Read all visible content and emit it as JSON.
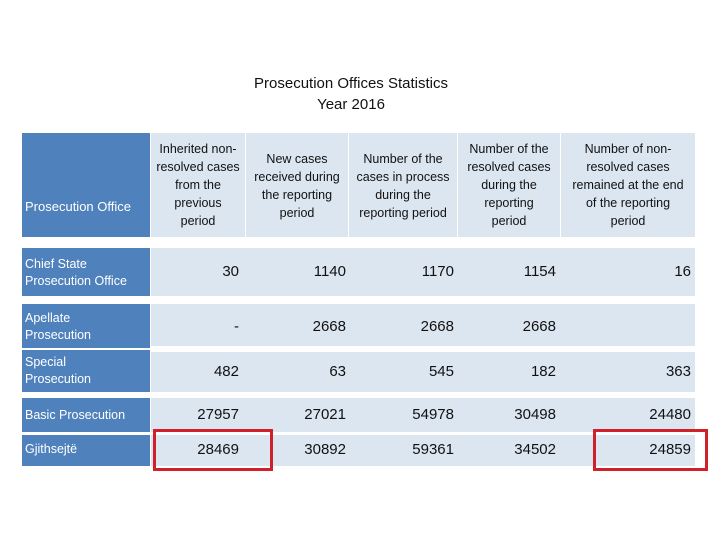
{
  "title": "Prosecution Offices Statistics",
  "subtitle": "Year 2016",
  "columns": [
    "Prosecution Office",
    "Inherited non-resolved cases from the previous period",
    "New cases received during the reporting period",
    "Number of the cases in process during the reporting period",
    "Number of the resolved cases during the reporting period",
    "Number of non-resolved cases remained at the end of the reporting period"
  ],
  "header_lines": {
    "c1": [
      "Inherited non-",
      "resolved cases",
      "from the",
      "previous",
      "period"
    ],
    "c2": [
      "New cases",
      "received during",
      "the reporting",
      "period"
    ],
    "c3": [
      "Number of the",
      "cases in process",
      "during the",
      "reporting period"
    ],
    "c4": [
      "Number of the",
      "resolved cases",
      "during the",
      "reporting",
      "period"
    ],
    "c5": [
      "Number of non-",
      "resolved cases",
      "remained at the end",
      "of the reporting",
      "period"
    ]
  },
  "rows": [
    {
      "label": [
        "Chief State",
        "Prosecution Office"
      ],
      "values": [
        "30",
        "1140",
        "1170",
        "1154",
        "16"
      ]
    },
    {
      "label": [
        "Apellate",
        "Prosecution"
      ],
      "values": [
        "-",
        "2668",
        "2668",
        "2668",
        ""
      ]
    },
    {
      "label": [
        "Special",
        "Prosecution"
      ],
      "values": [
        "482",
        "63",
        "545",
        "182",
        "363"
      ]
    },
    {
      "label": [
        "Basic Prosecution"
      ],
      "values": [
        "27957",
        "27021",
        "54978",
        "30498",
        "24480"
      ]
    },
    {
      "label": [
        "Gjithsejtë"
      ],
      "values": [
        "28469",
        "30892",
        "59361",
        "34502",
        "24859"
      ]
    }
  ],
  "highlight_color": "#d0202a",
  "header_color": "#4f81bd",
  "cell_color": "#dce6f1"
}
